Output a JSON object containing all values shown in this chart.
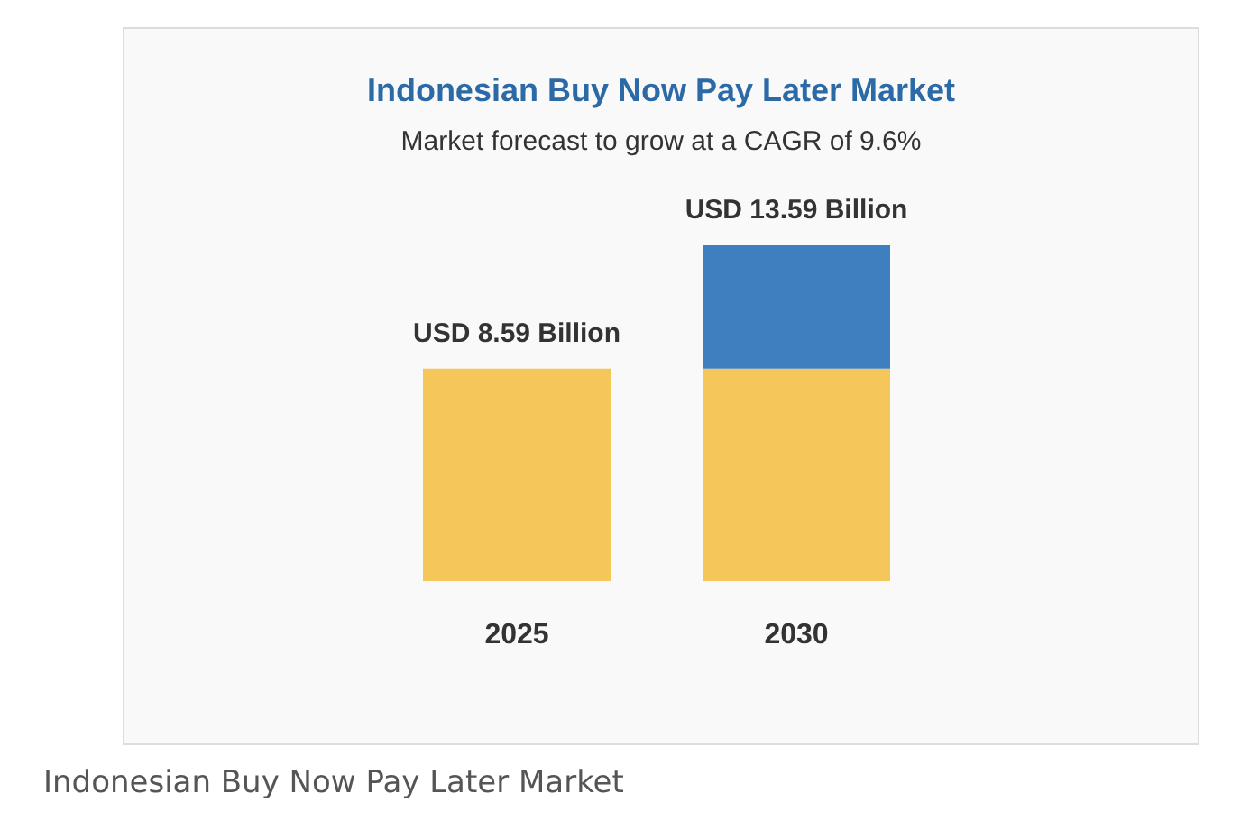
{
  "chart_data": {
    "type": "bar",
    "title": "Indonesian Buy Now Pay Later Market",
    "subtitle": "Market forecast to grow at a CAGR of 9.6%",
    "categories": [
      "2025",
      "2030"
    ],
    "stacked": true,
    "series": [
      {
        "color": "#f5c75a",
        "values": [
          8.59,
          8.59
        ],
        "value_labels": [
          "USD 8.59 Billion",
          null
        ]
      },
      {
        "color": "#3f7fbf",
        "values": [
          null,
          5.0
        ]
      }
    ],
    "totals": [
      null,
      "USD 13.59 Billion"
    ],
    "tick_labels": "x",
    "annotations": [
      "Indonesian Buy Now Pay Later Market"
    ]
  }
}
